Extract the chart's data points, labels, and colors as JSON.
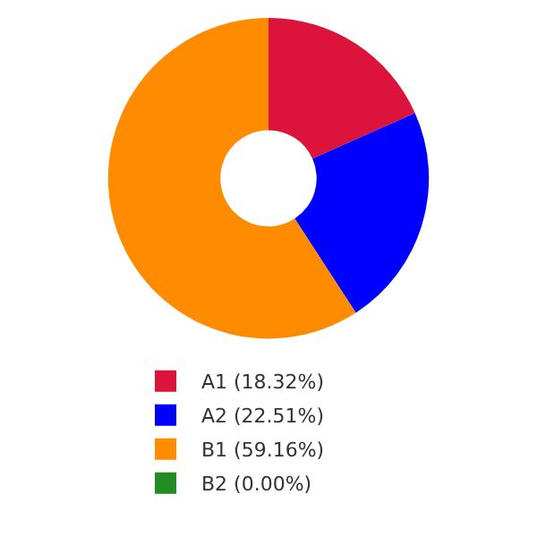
{
  "chart_data": {
    "type": "donut",
    "categories": [
      "A1 (18.32%)",
      "A2 (22.51%)",
      "B1 (59.16%)",
      "B2 (0.00%)"
    ],
    "values": [
      18.32,
      22.51,
      59.16,
      0.0
    ],
    "colors": [
      "#dc143c",
      "#0000ff",
      "#ff8c00",
      "#228b22"
    ],
    "legend": "bottom"
  }
}
